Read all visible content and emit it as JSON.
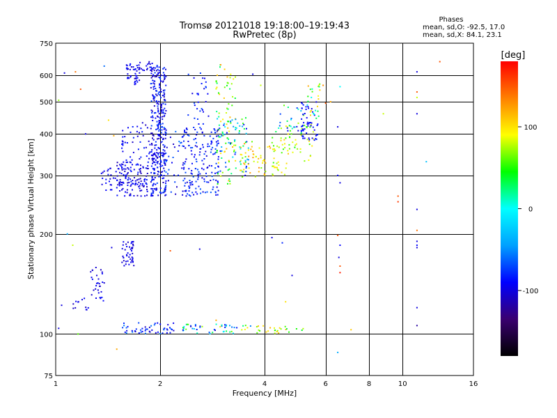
{
  "header": {
    "title_line1": "Tromsø 20121018 19:18:00–19:19:43",
    "title_line2": "RwPretec (8p)",
    "stats_title": "Phases",
    "stats_o": "mean, sd,O: -92.5, 17.0",
    "stats_x": "mean, sd,X:  84.1, 23.1"
  },
  "chart_data": {
    "type": "scatter",
    "title": "Tromsø 20121018 19:18:00–19:19:43",
    "subtitle": "RwPretec (8p)",
    "xlabel": "Frequency [MHz]",
    "ylabel": "Stationary phase Virtual Height [km]",
    "x_scale": "log",
    "y_scale": "log",
    "xlim": [
      1,
      16
    ],
    "ylim": [
      75,
      750
    ],
    "x_ticks": [
      1,
      2,
      4,
      6,
      8,
      10,
      16
    ],
    "x_tick_labels": [
      "1",
      "2",
      "4",
      "6",
      "8",
      "10",
      "16"
    ],
    "y_ticks": [
      75,
      100,
      200,
      300,
      400,
      500,
      600,
      750
    ],
    "y_tick_labels": [
      "75",
      "100",
      "200",
      "300",
      "400",
      "500",
      "600",
      "750"
    ],
    "grid": true,
    "colorbar": {
      "label": "[deg]",
      "range": [
        -180,
        180
      ],
      "ticks": [
        100,
        0,
        -100
      ],
      "tick_labels": [
        "100",
        "0",
        "-100"
      ],
      "colors": [
        "#000000",
        "#3a0070",
        "#0000ff",
        "#00a0ff",
        "#00ffff",
        "#00ff00",
        "#ffff00",
        "#ff8000",
        "#ff0000"
      ]
    },
    "clusters": [
      {
        "f": [
          1.35,
          1.58
        ],
        "h": [
          270,
          320
        ],
        "phase": [
          -110,
          -85
        ],
        "n": 30
      },
      {
        "f": [
          1.5,
          1.85
        ],
        "h": [
          260,
          330
        ],
        "phase": [
          -115,
          -80
        ],
        "n": 130
      },
      {
        "f": [
          1.55,
          1.9
        ],
        "h": [
          330,
          440
        ],
        "phase": [
          -110,
          -80
        ],
        "n": 45
      },
      {
        "f": [
          1.6,
          1.75
        ],
        "h": [
          560,
          650
        ],
        "phase": [
          -110,
          -85
        ],
        "n": 40
      },
      {
        "f": [
          1.72,
          1.92
        ],
        "h": [
          620,
          660
        ],
        "phase": [
          -110,
          -90
        ],
        "n": 20
      },
      {
        "f": [
          1.88,
          2.08
        ],
        "h": [
          260,
          650
        ],
        "phase": [
          -115,
          -70
        ],
        "n": 340
      },
      {
        "f": [
          2.05,
          2.4
        ],
        "h": [
          260,
          420
        ],
        "phase": [
          -110,
          -50
        ],
        "n": 40
      },
      {
        "f": [
          2.3,
          2.95
        ],
        "h": [
          260,
          420
        ],
        "phase": [
          -105,
          -65
        ],
        "n": 170
      },
      {
        "f": [
          2.4,
          2.8
        ],
        "h": [
          420,
          620
        ],
        "phase": [
          -105,
          -70
        ],
        "n": 30
      },
      {
        "f": [
          2.9,
          3.3
        ],
        "h": [
          280,
          650
        ],
        "phase": [
          20,
          130
        ],
        "n": 70
      },
      {
        "f": [
          2.9,
          3.6
        ],
        "h": [
          300,
          450
        ],
        "phase": [
          -100,
          60
        ],
        "n": 80
      },
      {
        "f": [
          3.4,
          4.3
        ],
        "h": [
          295,
          380
        ],
        "phase": [
          60,
          130
        ],
        "n": 55
      },
      {
        "f": [
          4.2,
          4.8
        ],
        "h": [
          300,
          390
        ],
        "phase": [
          50,
          110
        ],
        "n": 35
      },
      {
        "f": [
          4.6,
          5.6
        ],
        "h": [
          330,
          430
        ],
        "phase": [
          40,
          100
        ],
        "n": 35
      },
      {
        "f": [
          4.3,
          5.2
        ],
        "h": [
          400,
          490
        ],
        "phase": [
          -110,
          80
        ],
        "n": 25
      },
      {
        "f": [
          5.1,
          5.7
        ],
        "h": [
          380,
          500
        ],
        "phase": [
          -100,
          -80
        ],
        "n": 55
      },
      {
        "f": [
          5.3,
          5.8
        ],
        "h": [
          440,
          590
        ],
        "phase": [
          -20,
          120
        ],
        "n": 25
      },
      {
        "f": [
          1.55,
          1.68
        ],
        "h": [
          160,
          190
        ],
        "phase": [
          -110,
          -90
        ],
        "n": 45
      },
      {
        "f": [
          1.25,
          1.38
        ],
        "h": [
          125,
          160
        ],
        "phase": [
          -110,
          -85
        ],
        "n": 30
      },
      {
        "f": [
          1.12,
          1.25
        ],
        "h": [
          118,
          130
        ],
        "phase": [
          -110,
          -90
        ],
        "n": 12
      },
      {
        "f": [
          1.55,
          2.2
        ],
        "h": [
          100,
          108
        ],
        "phase": [
          -110,
          -50
        ],
        "n": 50
      },
      {
        "f": [
          2.3,
          3.7
        ],
        "h": [
          100,
          107
        ],
        "phase": [
          -110,
          100
        ],
        "n": 50
      },
      {
        "f": [
          3.7,
          5.2
        ],
        "h": [
          100,
          106
        ],
        "phase": [
          30,
          120
        ],
        "n": 25
      }
    ],
    "isolated_points": [
      {
        "f": 1.06,
        "h": 610,
        "phase": -100
      },
      {
        "f": 1.14,
        "h": 615,
        "phase": 140
      },
      {
        "f": 1.18,
        "h": 545,
        "phase": 150
      },
      {
        "f": 1.22,
        "h": 400,
        "phase": -100
      },
      {
        "f": 1.42,
        "h": 440,
        "phase": 100
      },
      {
        "f": 1.47,
        "h": 395,
        "phase": 120
      },
      {
        "f": 1.38,
        "h": 640,
        "phase": -60
      },
      {
        "f": 1.02,
        "h": 505,
        "phase": 70
      },
      {
        "f": 1.08,
        "h": 200,
        "phase": -40
      },
      {
        "f": 1.04,
        "h": 122,
        "phase": -100
      },
      {
        "f": 1.02,
        "h": 104,
        "phase": -100
      },
      {
        "f": 1.16,
        "h": 100,
        "phase": 60
      },
      {
        "f": 1.12,
        "h": 185,
        "phase": 80
      },
      {
        "f": 1.5,
        "h": 90,
        "phase": 120
      },
      {
        "f": 1.45,
        "h": 182,
        "phase": -100
      },
      {
        "f": 2.6,
        "h": 180,
        "phase": -100
      },
      {
        "f": 2.14,
        "h": 178,
        "phase": 150
      },
      {
        "f": 4.2,
        "h": 195,
        "phase": -100
      },
      {
        "f": 4.5,
        "h": 188,
        "phase": -80
      },
      {
        "f": 4.8,
        "h": 150,
        "phase": -100
      },
      {
        "f": 4.6,
        "h": 125,
        "phase": 100
      },
      {
        "f": 2.9,
        "h": 110,
        "phase": 120
      },
      {
        "f": 6.2,
        "h": 500,
        "phase": 120
      },
      {
        "f": 6.5,
        "h": 420,
        "phase": -100
      },
      {
        "f": 6.6,
        "h": 555,
        "phase": 0
      },
      {
        "f": 6.5,
        "h": 300,
        "phase": -90
      },
      {
        "f": 6.6,
        "h": 285,
        "phase": -100
      },
      {
        "f": 6.5,
        "h": 198,
        "phase": 150
      },
      {
        "f": 6.6,
        "h": 185,
        "phase": -90
      },
      {
        "f": 6.55,
        "h": 170,
        "phase": -100
      },
      {
        "f": 6.6,
        "h": 160,
        "phase": 150
      },
      {
        "f": 6.6,
        "h": 153,
        "phase": 170
      },
      {
        "f": 6.5,
        "h": 88,
        "phase": -40
      },
      {
        "f": 7.1,
        "h": 103,
        "phase": 110
      },
      {
        "f": 8.8,
        "h": 460,
        "phase": 80
      },
      {
        "f": 9.7,
        "h": 260,
        "phase": 150
      },
      {
        "f": 9.7,
        "h": 250,
        "phase": 160
      },
      {
        "f": 11.0,
        "h": 615,
        "phase": -100
      },
      {
        "f": 11.0,
        "h": 535,
        "phase": 150
      },
      {
        "f": 11.0,
        "h": 515,
        "phase": 80
      },
      {
        "f": 11.0,
        "h": 460,
        "phase": -100
      },
      {
        "f": 11.0,
        "h": 237,
        "phase": -100
      },
      {
        "f": 11.0,
        "h": 205,
        "phase": 140
      },
      {
        "f": 11.0,
        "h": 190,
        "phase": -100
      },
      {
        "f": 11.0,
        "h": 185,
        "phase": -90
      },
      {
        "f": 11.0,
        "h": 182,
        "phase": -100
      },
      {
        "f": 11.0,
        "h": 120,
        "phase": -100
      },
      {
        "f": 11.0,
        "h": 106,
        "phase": -120
      },
      {
        "f": 11.7,
        "h": 330,
        "phase": -30
      },
      {
        "f": 12.8,
        "h": 660,
        "phase": 150
      },
      {
        "f": 3.7,
        "h": 605,
        "phase": -100
      },
      {
        "f": 3.9,
        "h": 560,
        "phase": 80
      },
      {
        "f": 6.0,
        "h": 495,
        "phase": 150
      },
      {
        "f": 5.9,
        "h": 560,
        "phase": 130
      }
    ]
  }
}
